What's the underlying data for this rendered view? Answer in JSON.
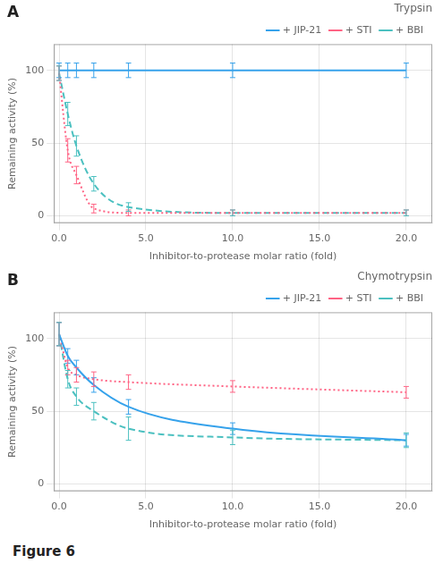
{
  "chart_data": [
    {
      "type": "line",
      "title": "Trypsin",
      "x_label": "Inhibitor-to-protease molar ratio (fold)",
      "y_label": "Remaining activity (%)",
      "annotations": [
        "A"
      ],
      "x": [
        0.0,
        0.5,
        1.0,
        2.0,
        4.0,
        10.0,
        20.0
      ],
      "series": [
        {
          "name": "+ JIP-21",
          "line_style": "solid",
          "values": [
            100,
            100,
            100,
            100,
            100,
            100,
            100
          ],
          "yerr": [
            5,
            5,
            5,
            5,
            5,
            5,
            5
          ]
        },
        {
          "name": "+ STI",
          "line_style": "dotted",
          "values": [
            98,
            45,
            28,
            5,
            2,
            2,
            2
          ],
          "yerr": [
            5,
            8,
            6,
            3,
            2,
            2,
            2
          ]
        },
        {
          "name": "+ BBI",
          "line_style": "dashed",
          "values": [
            98,
            70,
            48,
            22,
            6,
            2,
            2
          ],
          "yerr": [
            5,
            8,
            7,
            5,
            3,
            2,
            2
          ]
        }
      ],
      "xlim": [
        -0.3,
        21.5
      ],
      "xticks": [
        {
          "value": 0.0,
          "label": "0.0"
        },
        {
          "value": 5.0,
          "label": "5.0"
        },
        {
          "value": 10.0,
          "label": "10.0"
        },
        {
          "value": 15.0,
          "label": "15.0"
        },
        {
          "value": 20.0,
          "label": "20.0"
        }
      ],
      "ylim": [
        -5,
        118
      ],
      "yticks": [
        0,
        50,
        100
      ],
      "grid": true,
      "legend": "upper right"
    },
    {
      "type": "line",
      "title": "Chymotrypsin",
      "x_label": "Inhibitor-to-protease molar ratio (fold)",
      "y_label": "Remaining activity (%)",
      "annotations": [
        "B",
        "Figure 6"
      ],
      "x": [
        0.0,
        0.5,
        1.0,
        2.0,
        4.0,
        10.0,
        20.0
      ],
      "series": [
        {
          "name": "+ JIP-21",
          "line_style": "solid",
          "values": [
            103,
            88,
            80,
            68,
            53,
            38,
            30
          ],
          "yerr": [
            8,
            5,
            5,
            5,
            5,
            4,
            4
          ]
        },
        {
          "name": "+ STI",
          "line_style": "dotted",
          "values": [
            103,
            80,
            75,
            72,
            70,
            67,
            63
          ],
          "yerr": [
            8,
            5,
            5,
            5,
            5,
            4,
            4
          ]
        },
        {
          "name": "+ BBI",
          "line_style": "dashed",
          "values": [
            103,
            72,
            60,
            50,
            38,
            32,
            30
          ],
          "yerr": [
            8,
            6,
            6,
            6,
            8,
            5,
            5
          ]
        }
      ],
      "xlim": [
        -0.3,
        21.5
      ],
      "xticks": [
        {
          "value": 0.0,
          "label": "0.0"
        },
        {
          "value": 5.0,
          "label": "5.0"
        },
        {
          "value": 10.0,
          "label": "10.0"
        },
        {
          "value": 15.0,
          "label": "15.0"
        },
        {
          "value": 20.0,
          "label": "20.0"
        }
      ],
      "ylim": [
        -5,
        118
      ],
      "yticks": [
        0,
        50,
        100
      ],
      "grid": true,
      "legend": "upper right"
    }
  ]
}
